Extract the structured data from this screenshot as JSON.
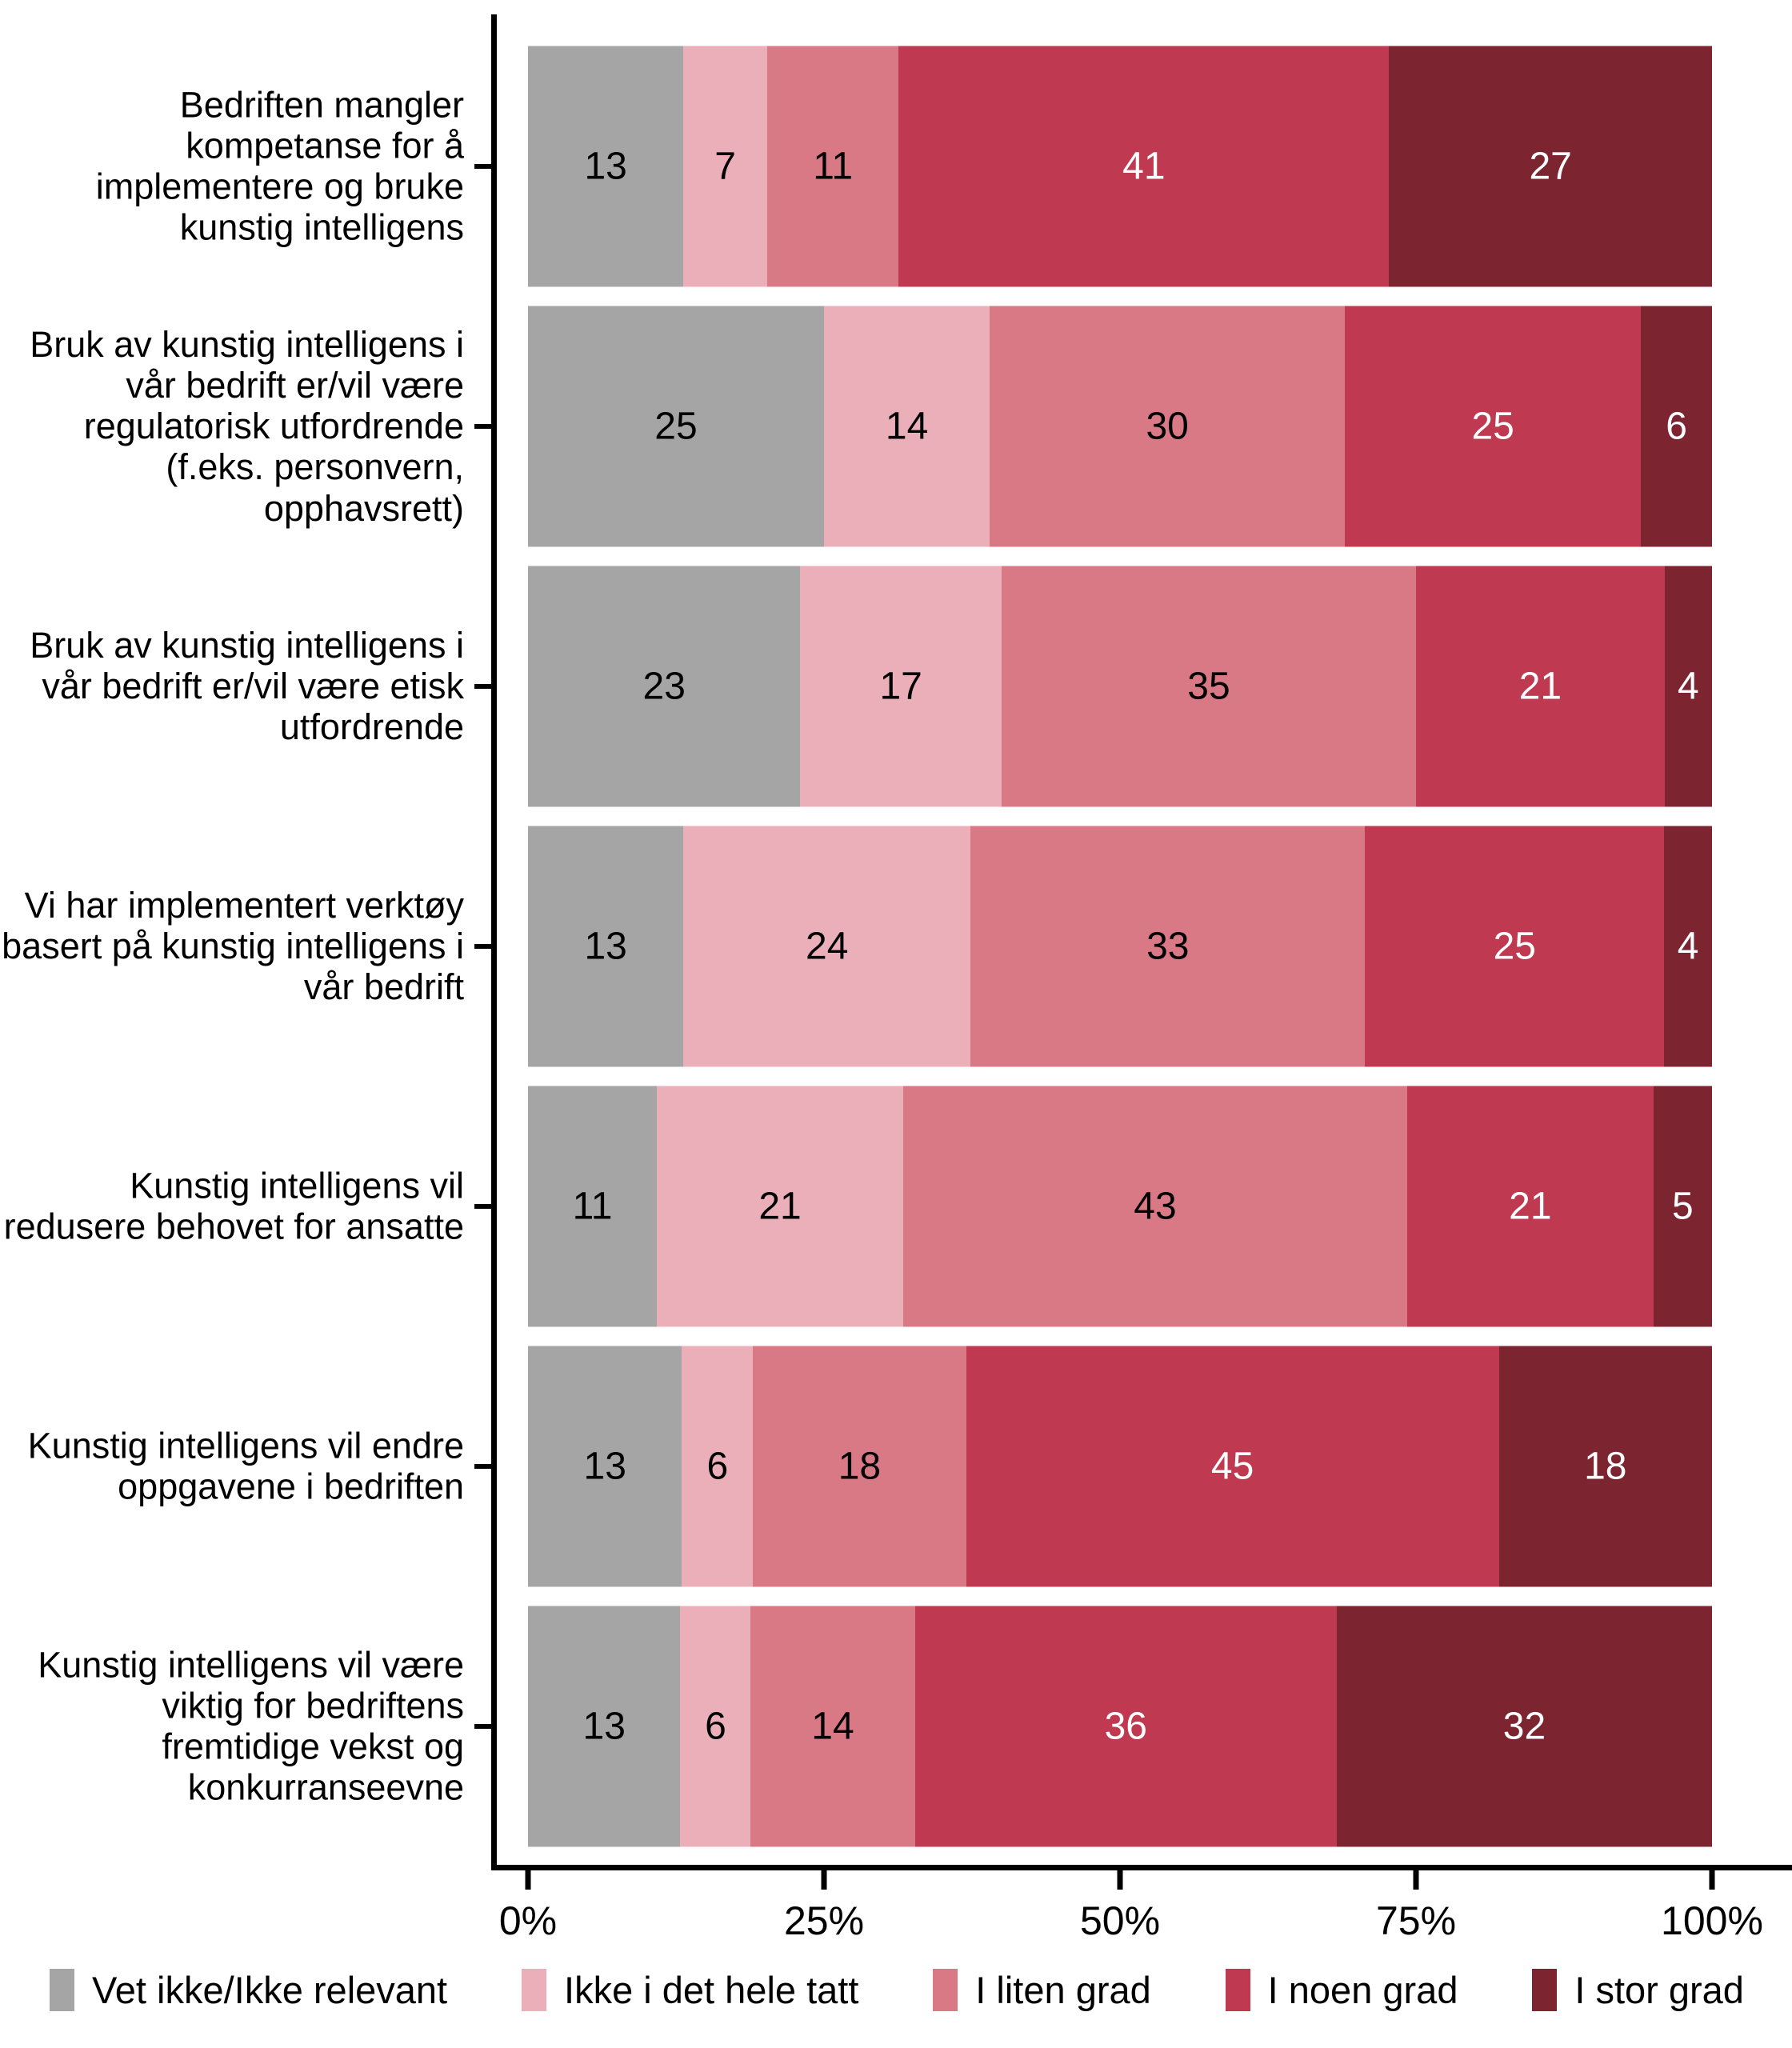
{
  "chart_data": {
    "type": "bar",
    "stacked": true,
    "orientation": "horizontal",
    "title": "",
    "unit": "%",
    "grid": false,
    "legend_position": "bottom",
    "x_axis": {
      "ticks": [
        "0%",
        "25%",
        "50%",
        "75%",
        "100%"
      ],
      "range": [
        0,
        100
      ]
    },
    "categories": [
      "Bedriften mangler kompetanse for å implementere og bruke kunstig intelligens",
      "Bruk av kunstig intelligens i vår bedrift er/vil være regulatorisk utfordrende (f.eks. personvern, opphavsrett)",
      "Bruk av kunstig intelligens i vår bedrift er/vil være etisk utfordrende",
      "Vi har implementert verktøy basert på kunstig intelligens i vår bedrift",
      "Kunstig intelligens vil redusere behovet for ansatte",
      "Kunstig intelligens vil endre oppgavene i bedriften",
      "Kunstig intelligens vil være viktig for bedriftens fremtidige vekst og konkurranseevne"
    ],
    "series": [
      {
        "name": "Vet ikke/Ikke relevant",
        "color": "#A5A5A5",
        "label_color": "#000000",
        "values": [
          13,
          25,
          23,
          13,
          11,
          13,
          13
        ]
      },
      {
        "name": "Ikke i det hele tatt",
        "color": "#EBAFB9",
        "label_color": "#000000",
        "values": [
          7,
          14,
          17,
          24,
          21,
          6,
          6
        ]
      },
      {
        "name": "I liten grad",
        "color": "#D87985",
        "label_color": "#000000",
        "values": [
          11,
          30,
          35,
          33,
          43,
          18,
          14
        ]
      },
      {
        "name": "I noen grad",
        "color": "#BF3A50",
        "label_color": "#FFFFFF",
        "values": [
          41,
          25,
          21,
          25,
          21,
          45,
          36
        ]
      },
      {
        "name": "I stor grad",
        "color": "#7C2530",
        "label_color": "#FFFFFF",
        "values": [
          27,
          6,
          4,
          4,
          5,
          18,
          32
        ]
      }
    ]
  }
}
